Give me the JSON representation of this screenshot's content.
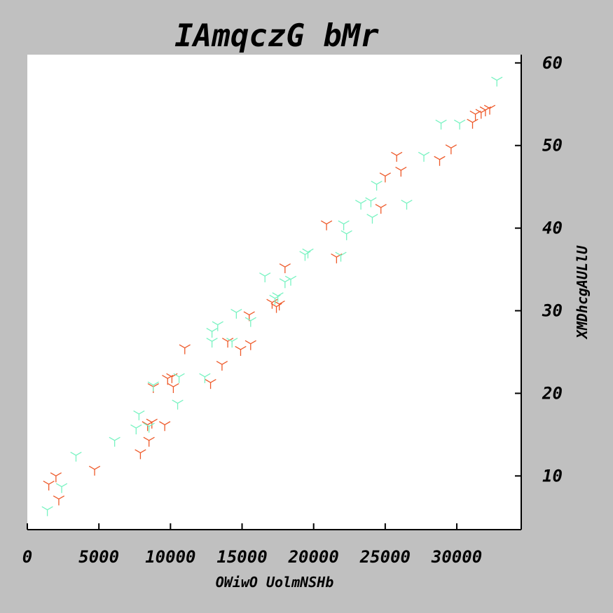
{
  "chart_data": {
    "type": "scatter",
    "title": "IAmqczG bMr",
    "xlabel": "OWiwO UolmNSHb",
    "ylabel": "XMDhcgAULlU",
    "xlim": [
      0,
      34500
    ],
    "ylim": [
      3.5,
      61
    ],
    "xticks": [
      0,
      5000,
      10000,
      15000,
      20000,
      25000,
      30000
    ],
    "yticks": [
      10,
      20,
      30,
      40,
      50,
      60
    ],
    "y_axis_position": "right",
    "grid": false,
    "legend": "none",
    "marker": "tri_down",
    "series": [
      {
        "color": "#ee5a2a",
        "points": [
          [
            1500,
            9.0
          ],
          [
            2000,
            10.0
          ],
          [
            2200,
            7.2
          ],
          [
            4700,
            10.8
          ],
          [
            7900,
            12.8
          ],
          [
            8400,
            16.2
          ],
          [
            8500,
            14.3
          ],
          [
            8700,
            16.5
          ],
          [
            8800,
            20.8
          ],
          [
            9600,
            16.2
          ],
          [
            9800,
            21.8
          ],
          [
            10200,
            20.8
          ],
          [
            10100,
            22.0
          ],
          [
            11000,
            25.5
          ],
          [
            12800,
            21.3
          ],
          [
            13600,
            23.5
          ],
          [
            14000,
            26.3
          ],
          [
            14900,
            25.3
          ],
          [
            15500,
            29.5
          ],
          [
            15600,
            26.0
          ],
          [
            17100,
            31.0
          ],
          [
            17400,
            30.5
          ],
          [
            17600,
            30.8
          ],
          [
            18000,
            35.3
          ],
          [
            20900,
            40.5
          ],
          [
            21600,
            36.5
          ],
          [
            24700,
            42.5
          ],
          [
            25000,
            46.3
          ],
          [
            25800,
            48.8
          ],
          [
            26100,
            47.0
          ],
          [
            28800,
            48.3
          ],
          [
            29600,
            49.7
          ],
          [
            31100,
            52.8
          ],
          [
            31300,
            53.8
          ],
          [
            31700,
            54.0
          ],
          [
            32000,
            54.3
          ],
          [
            32300,
            54.5
          ]
        ]
      },
      {
        "color": "#79f3c2",
        "points": [
          [
            1400,
            5.9
          ],
          [
            2400,
            8.7
          ],
          [
            3400,
            12.5
          ],
          [
            6100,
            14.3
          ],
          [
            7600,
            15.8
          ],
          [
            7800,
            17.5
          ],
          [
            8500,
            16.0
          ],
          [
            8800,
            21.0
          ],
          [
            10500,
            18.8
          ],
          [
            10600,
            22.0
          ],
          [
            12400,
            22.0
          ],
          [
            12900,
            27.5
          ],
          [
            12900,
            26.3
          ],
          [
            13300,
            28.3
          ],
          [
            14300,
            26.3
          ],
          [
            14600,
            29.8
          ],
          [
            15600,
            28.8
          ],
          [
            16600,
            34.2
          ],
          [
            17300,
            31.5
          ],
          [
            17500,
            31.8
          ],
          [
            18000,
            33.5
          ],
          [
            18400,
            33.8
          ],
          [
            19400,
            36.8
          ],
          [
            19600,
            37.1
          ],
          [
            21900,
            36.7
          ],
          [
            22100,
            40.5
          ],
          [
            22300,
            39.3
          ],
          [
            23300,
            43.0
          ],
          [
            24000,
            43.3
          ],
          [
            24100,
            41.3
          ],
          [
            24400,
            45.3
          ],
          [
            26500,
            43.0
          ],
          [
            27700,
            48.8
          ],
          [
            28900,
            52.7
          ],
          [
            30200,
            52.7
          ],
          [
            32800,
            57.9
          ]
        ]
      }
    ]
  }
}
